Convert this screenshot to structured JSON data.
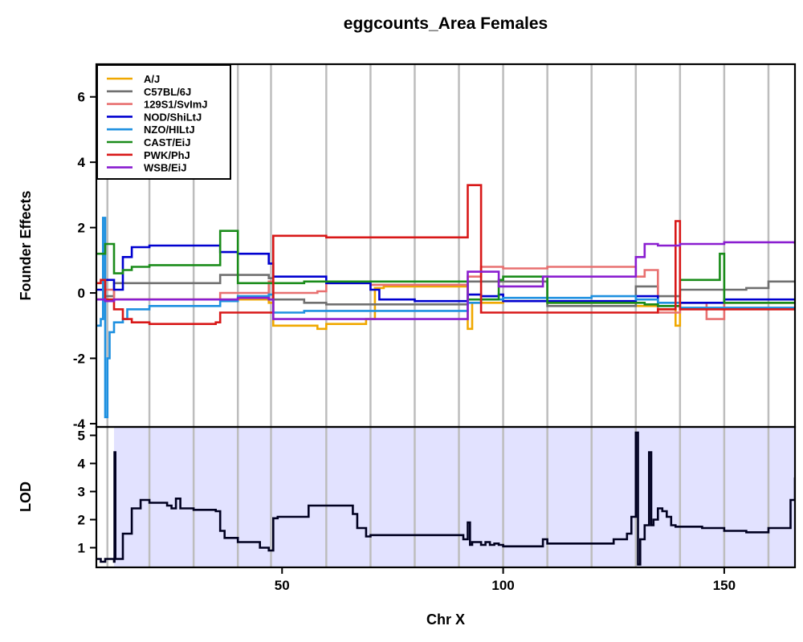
{
  "chart_data": {
    "type": "line",
    "title": "eggcounts_Area Females",
    "xlabel": "Chr X",
    "xlim": [
      8,
      166
    ],
    "x_ticks": [
      50,
      100,
      150
    ],
    "chromosome_gridlines": [
      10.5,
      20,
      30,
      40,
      47.5,
      60,
      70,
      80,
      90,
      100,
      110,
      120,
      130,
      140,
      150,
      160
    ],
    "grid": "vertical lines",
    "legend_position": "top-left",
    "panels": [
      {
        "name": "effects",
        "ylabel": "Founder Effects",
        "ylim": [
          -4.1,
          7.0
        ],
        "y_ticks": [
          -4,
          -2,
          0,
          2,
          4,
          6
        ],
        "series": [
          {
            "name": "A/J",
            "color": "#F0A800",
            "x": [
              8,
              30,
              36,
              47,
              48,
              55,
              58,
              60,
              65,
              69,
              71,
              73,
              80,
              91,
              92,
              93,
              95,
              99,
              100,
              109,
              110,
              120,
              128,
              130,
              135,
              139,
              140,
              150,
              166
            ],
            "y": [
              -0.2,
              -0.2,
              -0.2,
              -0.3,
              -1.0,
              -1.0,
              -1.1,
              -0.95,
              -0.95,
              -0.8,
              0.15,
              0.2,
              0.2,
              0.2,
              -1.1,
              -0.3,
              -0.3,
              -0.3,
              -0.25,
              -0.25,
              -0.3,
              -0.3,
              -0.3,
              -0.4,
              -0.5,
              -1.0,
              -0.3,
              -0.3,
              -0.3
            ]
          },
          {
            "name": "C57BL/6J",
            "color": "#707070",
            "x": [
              8,
              10,
              12,
              14,
              20,
              30,
              36,
              47,
              48,
              55,
              60,
              70,
              80,
              91,
              92,
              100,
              109,
              110,
              120,
              128,
              130,
              135,
              140,
              150,
              155,
              160,
              166
            ],
            "y": [
              -0.2,
              -0.1,
              0.3,
              0.3,
              0.3,
              0.3,
              0.55,
              0.45,
              -0.2,
              -0.3,
              -0.35,
              -0.35,
              -0.35,
              -0.35,
              0.35,
              0.35,
              0.35,
              -0.4,
              -0.4,
              -0.4,
              0.2,
              -0.1,
              0.1,
              0.1,
              0.15,
              0.35,
              0.35
            ]
          },
          {
            "name": "129S1/SvImJ",
            "color": "#E87070",
            "x": [
              8,
              10,
              12,
              14,
              20,
              30,
              36,
              47,
              48,
              55,
              58,
              60,
              70,
              80,
              91,
              92,
              95,
              99,
              100,
              109,
              110,
              120,
              128,
              130,
              132,
              135,
              140,
              144,
              146,
              150,
              166
            ],
            "y": [
              -0.2,
              0.1,
              -0.2,
              -0.2,
              -0.2,
              -0.2,
              0.0,
              0.35,
              0.0,
              0.0,
              0.05,
              0.3,
              0.25,
              0.25,
              0.25,
              0.5,
              0.8,
              0.8,
              0.75,
              0.75,
              0.8,
              0.8,
              0.8,
              0.5,
              0.7,
              -0.6,
              -0.3,
              -0.3,
              -0.8,
              -0.3,
              -0.3
            ]
          },
          {
            "name": "NOD/ShiLtJ",
            "color": "#0000D0",
            "x": [
              8,
              10,
              12,
              14,
              16,
              20,
              30,
              36,
              40,
              47,
              48,
              55,
              60,
              70,
              72,
              80,
              91,
              92,
              95,
              99,
              100,
              109,
              110,
              120,
              128,
              130,
              135,
              140,
              150,
              166
            ],
            "y": [
              0.1,
              0.4,
              0.1,
              1.1,
              1.4,
              1.45,
              1.45,
              1.25,
              1.2,
              0.9,
              0.5,
              0.5,
              0.3,
              0.1,
              -0.2,
              -0.25,
              -0.25,
              -0.05,
              -0.1,
              -0.05,
              -0.25,
              -0.25,
              -0.25,
              -0.25,
              -0.25,
              -0.1,
              -0.4,
              -0.3,
              -0.2,
              -0.2
            ]
          },
          {
            "name": "NZO/HILtJ",
            "color": "#1E90E0",
            "x": [
              8,
              9,
              9.5,
              10,
              10.5,
              11,
              12,
              14,
              15,
              20,
              30,
              36,
              40,
              47,
              48,
              55,
              60,
              70,
              80,
              91,
              92,
              95,
              99,
              100,
              109,
              110,
              120,
              128,
              130,
              135,
              140,
              150,
              166
            ],
            "y": [
              -1.0,
              -0.8,
              2.3,
              -3.8,
              -2.0,
              -1.2,
              -0.9,
              -0.8,
              -0.5,
              -0.4,
              -0.4,
              -0.25,
              -0.1,
              -0.05,
              -0.6,
              -0.55,
              -0.55,
              -0.55,
              -0.55,
              -0.55,
              -0.3,
              -0.2,
              -0.2,
              -0.15,
              -0.15,
              -0.15,
              -0.1,
              -0.1,
              -0.2,
              -0.3,
              -0.45,
              -0.45,
              -0.45
            ]
          },
          {
            "name": "CAST/EiJ",
            "color": "#1A8C1A",
            "x": [
              8,
              10,
              12,
              14,
              16,
              20,
              30,
              35,
              36,
              40,
              47,
              48,
              55,
              60,
              70,
              80,
              91,
              92,
              95,
              99,
              100,
              109,
              110,
              120,
              128,
              130,
              132,
              135,
              140,
              145,
              149,
              150,
              166
            ],
            "y": [
              1.2,
              1.5,
              0.6,
              0.7,
              0.8,
              0.85,
              0.85,
              0.85,
              1.9,
              0.3,
              0.3,
              0.3,
              0.35,
              0.35,
              0.35,
              0.35,
              0.35,
              -0.2,
              -0.2,
              0.4,
              0.5,
              0.5,
              -0.3,
              -0.3,
              -0.3,
              -0.3,
              -0.35,
              -0.4,
              0.4,
              0.4,
              1.2,
              -0.3,
              -0.3
            ]
          },
          {
            "name": "PWK/PhJ",
            "color": "#D81818",
            "x": [
              8,
              9,
              10,
              12,
              14,
              16,
              20,
              30,
              35,
              36,
              40,
              47,
              48,
              55,
              60,
              70,
              80,
              91,
              92,
              95,
              99,
              100,
              109,
              110,
              120,
              128,
              130,
              135,
              139,
              140,
              150,
              166
            ],
            "y": [
              0.3,
              0.4,
              -0.2,
              -0.5,
              -0.8,
              -0.9,
              -0.95,
              -0.95,
              -0.9,
              -0.6,
              -0.6,
              -0.6,
              1.75,
              1.75,
              1.7,
              1.7,
              1.7,
              1.7,
              3.3,
              -0.6,
              -0.6,
              -0.6,
              -0.6,
              -0.6,
              -0.6,
              -0.6,
              -0.6,
              -0.5,
              2.2,
              -0.5,
              -0.5,
              -0.5
            ]
          },
          {
            "name": "WSB/EiJ",
            "color": "#8A1ED0",
            "x": [
              8,
              10,
              12,
              14,
              20,
              30,
              36,
              40,
              47,
              48,
              55,
              60,
              70,
              80,
              91,
              92,
              95,
              99,
              100,
              109,
              110,
              120,
              128,
              130,
              132,
              135,
              140,
              150,
              166
            ],
            "y": [
              -0.2,
              -0.25,
              -0.2,
              -0.2,
              -0.2,
              -0.2,
              -0.2,
              -0.15,
              -0.2,
              -0.8,
              -0.8,
              -0.8,
              -0.8,
              -0.8,
              -0.8,
              0.65,
              0.65,
              0.2,
              0.2,
              0.5,
              0.5,
              0.5,
              0.5,
              1.1,
              1.5,
              1.45,
              1.5,
              1.55,
              1.5
            ]
          }
        ]
      },
      {
        "name": "lod",
        "ylabel": "LOD",
        "ylim": [
          0.3,
          5.3
        ],
        "y_ticks": [
          1,
          2,
          3,
          4,
          5
        ],
        "series": [
          {
            "name": "",
            "color": "#000020",
            "x": [
              8,
              9,
              10,
              11,
              12,
              12.1,
              12.3,
              12.5,
              14,
              16,
              18,
              20,
              24,
              25,
              26,
              27,
              30,
              35,
              36,
              37,
              40,
              45,
              47,
              48,
              49,
              50,
              55,
              56,
              57,
              60,
              65,
              66,
              67,
              69,
              70,
              71,
              75,
              80,
              85,
              90,
              91,
              92,
              92.5,
              93,
              95,
              96,
              97,
              98,
              99,
              100,
              105,
              109,
              110,
              115,
              120,
              125,
              128,
              129,
              130,
              130.5,
              131,
              132,
              133,
              133.5,
              134,
              135,
              136,
              137,
              138,
              139,
              140,
              145,
              146,
              150,
              152,
              155,
              160,
              165,
              166
            ],
            "y": [
              0.6,
              0.5,
              0.6,
              0.6,
              0.5,
              4.4,
              0.6,
              0.6,
              1.5,
              2.4,
              2.7,
              2.6,
              2.5,
              2.4,
              2.75,
              2.4,
              2.35,
              2.3,
              1.6,
              1.35,
              1.2,
              1.0,
              0.9,
              2.05,
              2.1,
              2.1,
              2.1,
              2.5,
              2.5,
              2.5,
              2.5,
              2.2,
              1.7,
              1.4,
              1.45,
              1.45,
              1.45,
              1.45,
              1.45,
              1.45,
              1.3,
              1.9,
              1.1,
              1.2,
              1.1,
              1.2,
              1.1,
              1.15,
              1.1,
              1.05,
              1.05,
              1.3,
              1.15,
              1.15,
              1.15,
              1.3,
              1.5,
              2.1,
              5.1,
              0.4,
              1.3,
              1.8,
              4.4,
              1.8,
              2.0,
              2.4,
              2.3,
              2.1,
              1.8,
              1.75,
              1.75,
              1.7,
              1.7,
              1.6,
              1.6,
              1.55,
              1.7,
              2.7,
              3.5
            ]
          }
        ]
      }
    ]
  }
}
